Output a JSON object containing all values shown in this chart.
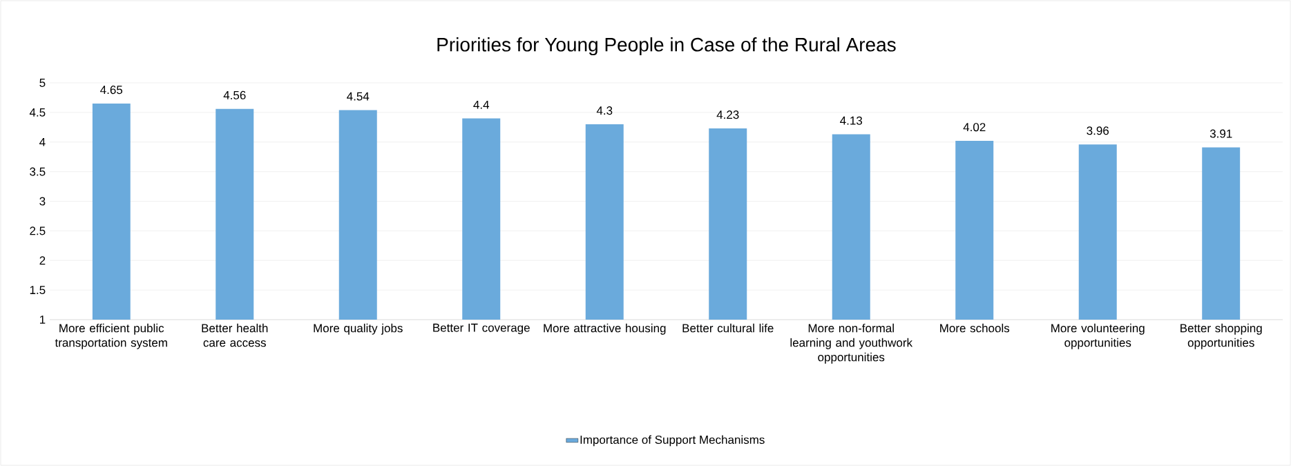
{
  "chart_data": {
    "type": "bar",
    "title": "Priorities for Young People in Case of the Rural Areas",
    "categories": [
      "More efficient public transportation system",
      "Better health care access",
      "More quality jobs",
      "Better IT coverage",
      "More attractive housing",
      "Better cultural life",
      "More non-formal learning and youthwork opportunities",
      "More schools",
      "More volunteering opportunities",
      "Better shopping opportunities"
    ],
    "series": [
      {
        "name": "Importance of Support Mechanisms",
        "color": "#6aaadc",
        "values": [
          4.65,
          4.56,
          4.54,
          4.4,
          4.3,
          4.23,
          4.13,
          4.02,
          3.96,
          3.91
        ]
      }
    ],
    "ylim": [
      1,
      5
    ],
    "yticks": [
      1,
      1.5,
      2,
      2.5,
      3,
      3.5,
      4,
      4.5,
      5
    ],
    "grid": "y",
    "legend": "bottom",
    "data_labels": true
  }
}
